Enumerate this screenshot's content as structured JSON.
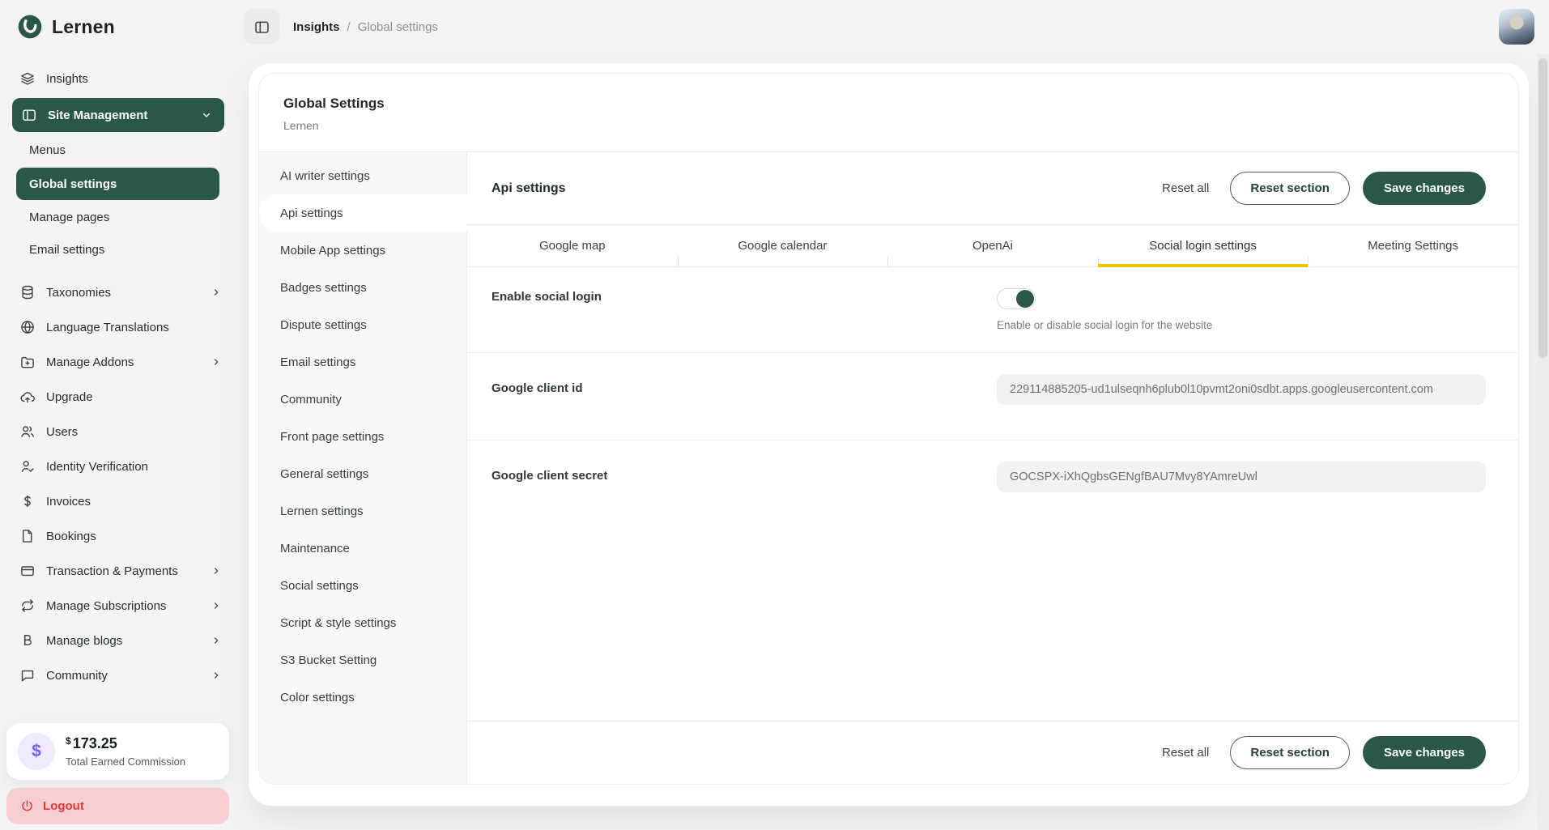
{
  "colors": {
    "green": "#2a574a",
    "yellow": "#f2c200",
    "logout-bg": "#f8ced3",
    "logout-red": "#e03a3a",
    "commission-purple": "#7b5cfa",
    "commission-bg": "#efeaff"
  },
  "brand": {
    "name": "Lernen"
  },
  "header": {
    "breadcrumb": {
      "root": "Insights",
      "separator": "/",
      "current": "Global settings"
    }
  },
  "sidebar": {
    "items": [
      {
        "label": "Insights",
        "icon": "layers-icon"
      },
      {
        "label": "Site Management",
        "icon": "panel-icon",
        "chevron": "down",
        "variant": "pill"
      },
      {
        "label": "Menus",
        "variant": "sub"
      },
      {
        "label": "Global settings",
        "variant": "sub",
        "active": true
      },
      {
        "label": "Manage pages",
        "variant": "sub"
      },
      {
        "label": "Email settings",
        "variant": "sub"
      },
      {
        "label": "Taxonomies",
        "icon": "database-icon",
        "chevron": "right",
        "gap_before": true
      },
      {
        "label": "Language Translations",
        "icon": "globe-icon"
      },
      {
        "label": "Manage Addons",
        "icon": "folder-plus-icon",
        "chevron": "right"
      },
      {
        "label": "Upgrade",
        "icon": "cloud-up-icon"
      },
      {
        "label": "Users",
        "icon": "users-icon"
      },
      {
        "label": "Identity Verification",
        "icon": "user-check-icon"
      },
      {
        "label": "Invoices",
        "icon": "dollar-icon"
      },
      {
        "label": "Bookings",
        "icon": "file-icon"
      },
      {
        "label": "Transaction & Payments",
        "icon": "credit-card-icon",
        "chevron": "right"
      },
      {
        "label": "Manage Subscriptions",
        "icon": "repeat-icon",
        "chevron": "right"
      },
      {
        "label": "Manage blogs",
        "icon": "blog-icon",
        "chevron": "right"
      },
      {
        "label": "Community",
        "icon": "chat-icon",
        "chevron": "right"
      }
    ],
    "commission": {
      "currency": "$",
      "amount": "173.25",
      "label": "Total Earned Commission"
    },
    "logout_label": "Logout"
  },
  "page": {
    "title": "Global Settings",
    "subtitle": "Lernen",
    "settings_nav": {
      "active_index": 1,
      "items": [
        "AI writer settings",
        "Api settings",
        "Mobile App settings",
        "Badges settings",
        "Dispute settings",
        "Email settings",
        "Community",
        "Front page settings",
        "General settings",
        "Lernen settings",
        "Maintenance",
        "Social settings",
        "Script & style settings",
        "S3 Bucket Setting",
        "Color settings"
      ]
    },
    "section": {
      "title": "Api settings",
      "actions": {
        "reset_all": "Reset all",
        "reset_section": "Reset section",
        "save": "Save changes"
      }
    },
    "tabs": {
      "active_index": 3,
      "items": [
        "Google map",
        "Google calendar",
        "OpenAi",
        "Social login settings",
        "Meeting Settings"
      ]
    },
    "form": {
      "rows": [
        {
          "id": "enable-social-login",
          "label": "Enable social login",
          "type": "toggle",
          "value": true,
          "help": "Enable or disable social login for the website"
        },
        {
          "id": "google-client-id",
          "label": "Google client id",
          "type": "text",
          "value": "229114885205-ud1ulseqnh6plub0l10pvmt2oni0sdbt.apps.googleusercontent.com"
        },
        {
          "id": "google-client-secret",
          "label": "Google client secret",
          "type": "text",
          "value": "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"
        }
      ]
    }
  }
}
